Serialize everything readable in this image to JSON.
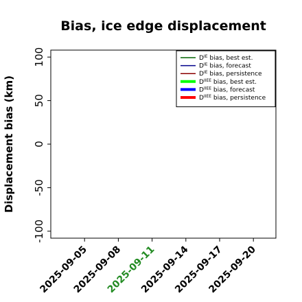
{
  "chart_data": {
    "type": "line",
    "title": "Bias, ice edge displacement",
    "ylabel": "Displacement bias (km)",
    "xlabel": "",
    "ylim": [
      -108,
      108
    ],
    "yticks": [
      -100,
      -50,
      0,
      50,
      100
    ],
    "ytick_labels": [
      "-100",
      "-50",
      "0",
      "50",
      "100"
    ],
    "xlim": [
      "2025-09-02",
      "2025-09-22"
    ],
    "xticks": [
      "2025-09-05",
      "2025-09-08",
      "2025-09-11",
      "2025-09-14",
      "2025-09-17",
      "2025-09-20"
    ],
    "xtick_colors": [
      "#000000",
      "#000000",
      "#228b22",
      "#000000",
      "#000000",
      "#000000"
    ],
    "grid": false,
    "legend_position": "top-right",
    "series": [
      {
        "name": "D^IE bias, best est.",
        "sym": "D",
        "sup": "IE",
        "rest": " bias, best est.",
        "color": "#006400",
        "width": 1.5,
        "values": []
      },
      {
        "name": "D^IE bias, forecast",
        "sym": "D",
        "sup": "IE",
        "rest": " bias, forecast",
        "color": "#00008b",
        "width": 1.5,
        "values": []
      },
      {
        "name": "D^IE bias, persistence",
        "sym": "D",
        "sup": "IE",
        "rest": " bias, persistence",
        "color": "#8b0000",
        "width": 1.5,
        "values": []
      },
      {
        "name": "D^IIEE bias, best est.",
        "sym": "D",
        "sup": "IIEE",
        "rest": " bias, best est.",
        "color": "#00ff00",
        "width": 4,
        "values": []
      },
      {
        "name": "D^IIEE bias, forecast",
        "sym": "D",
        "sup": "IIEE",
        "rest": " bias, forecast",
        "color": "#0000ff",
        "width": 4,
        "values": []
      },
      {
        "name": "D^IIEE bias, persistence",
        "sym": "D",
        "sup": "IIEE",
        "rest": " bias, persistence",
        "color": "#ff0000",
        "width": 4,
        "values": []
      }
    ]
  }
}
